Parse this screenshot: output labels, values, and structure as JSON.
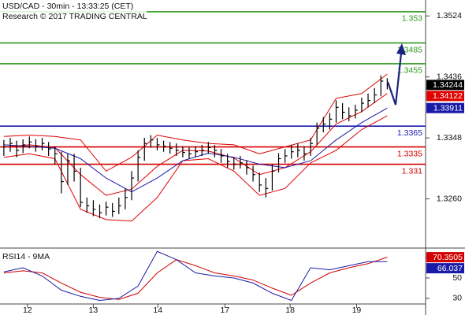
{
  "header": {
    "title": "USD/CAD - 30min - 13:33:25 (CET)",
    "subtitle": "Research © 2017 TRADING CENTRAL"
  },
  "chart_data": [
    {
      "type": "ohlc",
      "color": "#000000",
      "xlim": [
        -0.6,
        66
      ],
      "ylim": [
        1.3189,
        1.3547
      ],
      "yticks": [
        1.3524,
        1.3436,
        1.3348,
        {
          "value": 1.326,
          "label": "1.3260"
        }
      ],
      "xticks": [
        {
          "value": 3.7,
          "label": "12"
        },
        {
          "value": 14,
          "label": "13"
        },
        {
          "value": 24.1,
          "label": "14"
        },
        {
          "value": 34.6,
          "label": "17"
        },
        {
          "value": 44.8,
          "label": "18"
        },
        {
          "value": 55.2,
          "label": "19"
        }
      ],
      "high": [
        1.3345,
        1.3348,
        1.3344,
        1.3346,
        1.335,
        1.3346,
        1.3348,
        1.3342,
        1.3336,
        1.3328,
        1.3325,
        1.3325,
        1.3305,
        1.3262,
        1.3258,
        1.3252,
        1.3256,
        1.3254,
        1.3262,
        1.3275,
        1.33,
        1.333,
        1.3348,
        1.3352,
        1.3348,
        1.3344,
        1.3342,
        1.334,
        1.3336,
        1.3334,
        1.3336,
        1.3338,
        1.3342,
        1.3338,
        1.3332,
        1.3325,
        1.332,
        1.3322,
        1.3316,
        1.3308,
        1.3298,
        1.329,
        1.331,
        1.3326,
        1.3332,
        1.3338,
        1.334,
        1.3336,
        1.3348,
        1.337,
        1.3378,
        1.3384,
        1.3402,
        1.3398,
        1.3392,
        1.3396,
        1.3406,
        1.3412,
        1.342,
        1.3438,
        1.3434
      ],
      "low": [
        1.3322,
        1.3328,
        1.332,
        1.3326,
        1.3333,
        1.3328,
        1.333,
        1.3322,
        1.331,
        1.3268,
        1.328,
        1.3285,
        1.3248,
        1.324,
        1.3235,
        1.3232,
        1.3236,
        1.3234,
        1.3238,
        1.3245,
        1.3258,
        1.3285,
        1.3315,
        1.3334,
        1.333,
        1.3328,
        1.3325,
        1.3322,
        1.332,
        1.3318,
        1.332,
        1.3322,
        1.3325,
        1.332,
        1.3312,
        1.3305,
        1.3302,
        1.3304,
        1.3295,
        1.3285,
        1.327,
        1.3262,
        1.3272,
        1.3298,
        1.3312,
        1.3318,
        1.332,
        1.3315,
        1.3322,
        1.3338,
        1.3356,
        1.336,
        1.337,
        1.3375,
        1.3372,
        1.3376,
        1.3385,
        1.3392,
        1.3398,
        1.3408,
        1.3418
      ],
      "close": [
        1.3335,
        1.334,
        1.333,
        1.3338,
        1.3342,
        1.3336,
        1.334,
        1.3332,
        1.3325,
        1.3285,
        1.3315,
        1.33,
        1.3255,
        1.325,
        1.3245,
        1.324,
        1.3248,
        1.3242,
        1.325,
        1.3262,
        1.329,
        1.332,
        1.334,
        1.3345,
        1.3338,
        1.3336,
        1.3333,
        1.333,
        1.3327,
        1.3325,
        1.3328,
        1.333,
        1.3334,
        1.333,
        1.3322,
        1.3314,
        1.331,
        1.3312,
        1.3305,
        1.3295,
        1.328,
        1.3275,
        1.33,
        1.3318,
        1.3322,
        1.3328,
        1.333,
        1.3325,
        1.334,
        1.3362,
        1.3368,
        1.3375,
        1.3392,
        1.3385,
        1.338,
        1.3388,
        1.3398,
        1.3402,
        1.341,
        1.343,
        1.34244
      ],
      "lines": [
        {
          "color": "#e00000",
          "x": [
            0,
            4,
            8,
            12,
            16,
            20,
            24,
            28,
            32,
            36,
            40,
            44,
            48,
            52,
            56,
            60
          ],
          "values": [
            1.335,
            1.3352,
            1.335,
            1.3345,
            1.33,
            1.332,
            1.3352,
            1.3345,
            1.334,
            1.3338,
            1.3325,
            1.3335,
            1.3345,
            1.3405,
            1.3412,
            1.344
          ]
        },
        {
          "color": "#e00000",
          "x": [
            0,
            4,
            8,
            12,
            16,
            20,
            24,
            28,
            32,
            36,
            40,
            44,
            48,
            52,
            56,
            60
          ],
          "values": [
            1.332,
            1.3325,
            1.3318,
            1.3245,
            1.323,
            1.3228,
            1.3262,
            1.3315,
            1.3318,
            1.33,
            1.3265,
            1.3275,
            1.3312,
            1.333,
            1.336,
            1.338
          ]
        },
        {
          "color": "#e00000",
          "x": [
            0,
            4,
            8,
            12,
            16,
            20,
            24,
            28,
            32,
            36,
            40,
            44,
            48,
            52,
            56,
            60
          ],
          "values": [
            1.3335,
            1.3338,
            1.3334,
            1.3295,
            1.3265,
            1.3274,
            1.3307,
            1.333,
            1.3329,
            1.3319,
            1.3295,
            1.3305,
            1.3328,
            1.3368,
            1.3386,
            1.34122
          ]
        },
        {
          "color": "#1a1aa8",
          "x": [
            0,
            4,
            8,
            12,
            16,
            20,
            24,
            28,
            32,
            36,
            40,
            44,
            48,
            52,
            56,
            60
          ],
          "values": [
            1.3338,
            1.3336,
            1.3333,
            1.3318,
            1.329,
            1.327,
            1.329,
            1.3315,
            1.3326,
            1.332,
            1.331,
            1.3305,
            1.3315,
            1.3345,
            1.337,
            1.33911
          ]
        }
      ],
      "levels": [
        {
          "value": 1.353,
          "color": "#2e9a1c"
        },
        {
          "value": 1.3485,
          "color": "#2e9a1c"
        },
        {
          "value": 1.3455,
          "color": "#2e9a1c"
        },
        {
          "value": 1.3365,
          "color": "#1b1bb3"
        },
        {
          "value": 1.3335,
          "color": "#d40000"
        },
        {
          "value": 1.331,
          "color": "#d40000"
        }
      ]
    },
    {
      "type": "line",
      "title": "RSI14 - 9MA",
      "xlim": [
        -0.6,
        66
      ],
      "ylim": [
        24.5,
        77
      ],
      "yticks": [
        70,
        50,
        30
      ],
      "series": [
        {
          "color": "#d40000",
          "x": [
            0,
            3,
            6,
            9,
            12,
            15,
            18,
            21,
            24,
            27,
            30,
            33,
            36,
            39,
            42,
            45,
            48,
            51,
            54,
            57,
            60
          ],
          "values": [
            55,
            57,
            55,
            45,
            36,
            31,
            29,
            35,
            55,
            68,
            62,
            55,
            52,
            48,
            40,
            33,
            45,
            55,
            60,
            64,
            70.3505
          ]
        },
        {
          "color": "#1a1aa8",
          "x": [
            0,
            3,
            6,
            9,
            12,
            15,
            18,
            21,
            24,
            27,
            30,
            33,
            36,
            39,
            42,
            45,
            48,
            51,
            54,
            57,
            60
          ],
          "values": [
            56,
            60,
            52,
            38,
            32,
            28,
            30,
            42,
            76,
            68,
            55,
            52,
            50,
            45,
            35,
            28,
            60,
            58,
            62,
            66,
            66.037
          ]
        }
      ]
    }
  ]
}
